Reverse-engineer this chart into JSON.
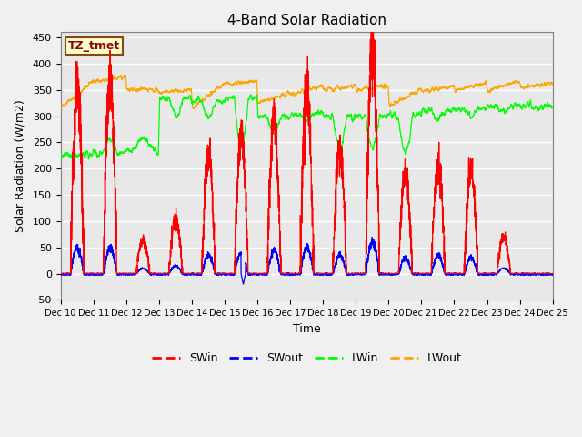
{
  "title": "4-Band Solar Radiation",
  "xlabel": "Time",
  "ylabel": "Solar Radiation (W/m2)",
  "ylim": [
    -50,
    460
  ],
  "annotation": "TZ_tmet",
  "legend": [
    "SWin",
    "SWout",
    "LWin",
    "LWout"
  ],
  "colors": [
    "red",
    "blue",
    "lime",
    "orange"
  ],
  "plot_bg": "#e8e8e8",
  "fig_bg": "#f0f0f0",
  "grid_color": "white",
  "tick_labels": [
    "Dec 10",
    "Dec 11",
    "Dec 12",
    "Dec 13",
    "Dec 14",
    "Dec 15",
    "Dec 16",
    "Dec 17",
    "Dec 18",
    "Dec 19",
    "Dec 20",
    "Dec 21",
    "Dec 22",
    "Dec 23",
    "Dec 24",
    "Dec 25"
  ],
  "yticks": [
    -50,
    0,
    50,
    100,
    150,
    200,
    250,
    300,
    350,
    400,
    450
  ],
  "figsize": [
    6.4,
    4.8
  ],
  "dpi": 100
}
